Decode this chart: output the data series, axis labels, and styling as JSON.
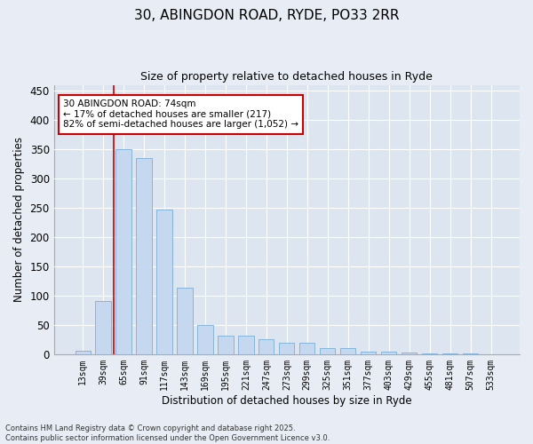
{
  "title1": "30, ABINGDON ROAD, RYDE, PO33 2RR",
  "title2": "Size of property relative to detached houses in Ryde",
  "xlabel": "Distribution of detached houses by size in Ryde",
  "ylabel": "Number of detached properties",
  "categories": [
    "13sqm",
    "39sqm",
    "65sqm",
    "91sqm",
    "117sqm",
    "143sqm",
    "169sqm",
    "195sqm",
    "221sqm",
    "247sqm",
    "273sqm",
    "299sqm",
    "325sqm",
    "351sqm",
    "377sqm",
    "403sqm",
    "429sqm",
    "455sqm",
    "481sqm",
    "507sqm",
    "533sqm"
  ],
  "values": [
    6,
    90,
    350,
    335,
    247,
    113,
    50,
    31,
    32,
    25,
    20,
    20,
    10,
    10,
    5,
    4,
    3,
    2,
    1,
    1,
    0
  ],
  "bar_color": "#c5d8ef",
  "bar_edge_color": "#7aaed6",
  "vline_color": "#cc0000",
  "vline_pos": 1.5,
  "annotation_text": "30 ABINGDON ROAD: 74sqm\n← 17% of detached houses are smaller (217)\n82% of semi-detached houses are larger (1,052) →",
  "annotation_box_color": "#cc0000",
  "annotation_fill": "#ffffff",
  "ylim": [
    0,
    460
  ],
  "yticks": [
    0,
    50,
    100,
    150,
    200,
    250,
    300,
    350,
    400,
    450
  ],
  "footer_text": "Contains HM Land Registry data © Crown copyright and database right 2025.\nContains public sector information licensed under the Open Government Licence v3.0.",
  "bg_color": "#e8edf5",
  "plot_bg_color": "#dde5f0",
  "grid_color": "#ffffff",
  "bar_width": 0.75
}
